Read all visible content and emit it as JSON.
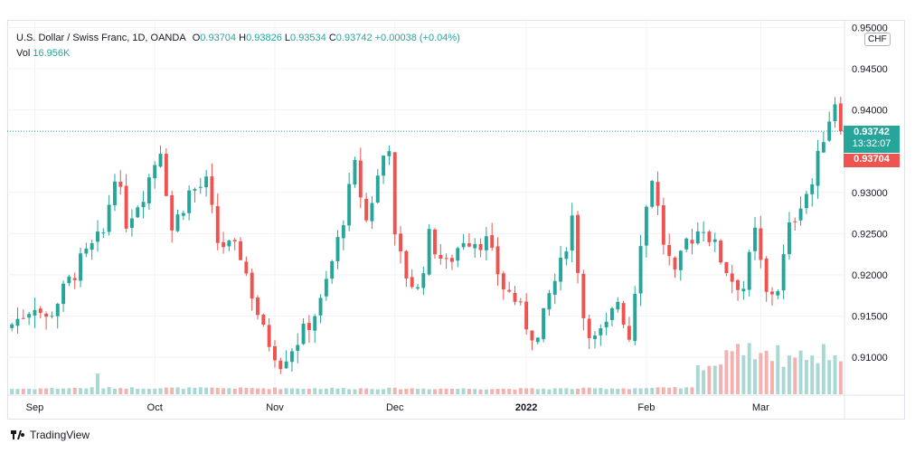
{
  "legend": {
    "symbol": "U.S. Dollar / Swiss Franc, 1D, OANDA",
    "o_label": "O",
    "o_value": "0.93704",
    "h_label": "H",
    "h_value": "0.93826",
    "l_label": "L",
    "l_value": "0.93534",
    "c_label": "C",
    "c_value": "0.93742",
    "change": "+0.00038 (+0.04%)",
    "vol_label": "Vol",
    "vol_value": "16.956K"
  },
  "currency_badge": "CHF",
  "price_tags": {
    "last_price": "0.93742",
    "countdown": "13:32:07",
    "open_price": "0.93704"
  },
  "brand": "TradingView",
  "colors": {
    "up": "#26a69a",
    "down": "#ef5350",
    "vol_up": "#a7d8d3",
    "vol_down": "#f3b1b0",
    "grid": "#f0f3fa",
    "price_line": "#26a69a"
  },
  "chart_data": {
    "type": "candlestick",
    "title": "",
    "xlabel": "",
    "ylabel": "",
    "ylim": [
      0.9055,
      0.9505
    ],
    "y_ticks": [
      "0.91000",
      "0.91500",
      "0.92000",
      "0.92500",
      "0.93000",
      "0.94000",
      "0.94500",
      "0.95000"
    ],
    "x_ticks": [
      {
        "label": "Sep",
        "index": 4
      },
      {
        "label": "Oct",
        "index": 25
      },
      {
        "label": "Nov",
        "index": 46
      },
      {
        "label": "Dec",
        "index": 67
      },
      {
        "label": "2022",
        "index": 90
      },
      {
        "label": "Feb",
        "index": 111
      },
      {
        "label": "Mar",
        "index": 131
      }
    ],
    "current_price": 0.93742,
    "close_path": [
      [
        0,
        0.914
      ],
      [
        4,
        0.9165
      ],
      [
        6,
        0.9145
      ],
      [
        9,
        0.918
      ],
      [
        12,
        0.9215
      ],
      [
        16,
        0.925
      ],
      [
        18,
        0.9325
      ],
      [
        20,
        0.9265
      ],
      [
        23,
        0.93
      ],
      [
        26,
        0.9355
      ],
      [
        28,
        0.9255
      ],
      [
        31,
        0.93
      ],
      [
        34,
        0.931
      ],
      [
        36,
        0.924
      ],
      [
        40,
        0.9225
      ],
      [
        44,
        0.913
      ],
      [
        47,
        0.9095
      ],
      [
        51,
        0.913
      ],
      [
        54,
        0.9165
      ],
      [
        57,
        0.924
      ],
      [
        60,
        0.933
      ],
      [
        62,
        0.9265
      ],
      [
        65,
        0.9345
      ],
      [
        66,
        0.936
      ],
      [
        67,
        0.924
      ],
      [
        69,
        0.92
      ],
      [
        71,
        0.918
      ],
      [
        73,
        0.9245
      ],
      [
        76,
        0.921
      ],
      [
        79,
        0.9245
      ],
      [
        83,
        0.924
      ],
      [
        86,
        0.9185
      ],
      [
        88,
        0.917
      ],
      [
        90,
        0.914
      ],
      [
        92,
        0.912
      ],
      [
        94,
        0.9175
      ],
      [
        96,
        0.921
      ],
      [
        98,
        0.927
      ],
      [
        100,
        0.915
      ],
      [
        102,
        0.912
      ],
      [
        104,
        0.9135
      ],
      [
        106,
        0.917
      ],
      [
        108,
        0.9125
      ],
      [
        110,
        0.9245
      ],
      [
        112,
        0.932
      ],
      [
        114,
        0.924
      ],
      [
        116,
        0.9195
      ],
      [
        118,
        0.924
      ],
      [
        121,
        0.926
      ],
      [
        124,
        0.922
      ],
      [
        126,
        0.9195
      ],
      [
        128,
        0.9185
      ],
      [
        130,
        0.925
      ],
      [
        132,
        0.9175
      ],
      [
        134,
        0.9185
      ],
      [
        136,
        0.9255
      ],
      [
        138,
        0.929
      ],
      [
        140,
        0.931
      ],
      [
        142,
        0.937
      ],
      [
        144,
        0.9412
      ],
      [
        145,
        0.93742
      ]
    ],
    "volume_profile": [
      [
        0,
        6
      ],
      [
        14,
        7
      ],
      [
        15,
        22
      ],
      [
        16,
        7
      ],
      [
        90,
        6
      ],
      [
        119,
        7
      ],
      [
        120,
        30
      ],
      [
        124,
        34
      ],
      [
        126,
        52
      ],
      [
        127,
        64
      ],
      [
        128,
        44
      ],
      [
        129,
        58
      ],
      [
        130,
        44
      ],
      [
        131,
        40
      ],
      [
        132,
        56
      ],
      [
        133,
        36
      ],
      [
        134,
        52
      ],
      [
        135,
        34
      ],
      [
        136,
        42
      ],
      [
        137,
        40
      ],
      [
        138,
        44
      ],
      [
        140,
        40
      ],
      [
        141,
        38
      ],
      [
        142,
        56
      ],
      [
        143,
        40
      ],
      [
        144,
        46
      ],
      [
        145,
        36
      ]
    ],
    "candle_count": 146
  }
}
